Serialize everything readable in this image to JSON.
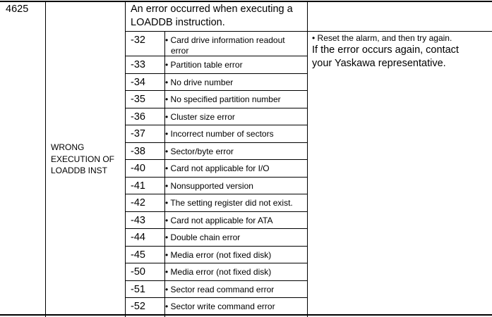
{
  "alarm": {
    "code": "4625",
    "name": "WRONG EXECUTION OF LOADDB INST",
    "name_lines": [
      "WRONG",
      "EXECUTION OF",
      "LOADDB INST"
    ],
    "description_lines": [
      "An error occurred when executing a",
      "LOADDB instruction."
    ],
    "remedy_bullet": "• Reset the alarm, and then try again.",
    "remedy_lines": [
      "If the error occurs again, contact",
      "your Yaskawa representative."
    ],
    "subcodes": [
      {
        "code": "-32",
        "lines": [
          "• Card drive information readout",
          "error"
        ]
      },
      {
        "code": "-33",
        "lines": [
          "• Partition table error"
        ]
      },
      {
        "code": "-34",
        "lines": [
          "• No drive number"
        ]
      },
      {
        "code": "-35",
        "lines": [
          "• No specified partition number"
        ]
      },
      {
        "code": "-36",
        "lines": [
          "• Cluster size error"
        ]
      },
      {
        "code": "-37",
        "lines": [
          "• Incorrect number of sectors"
        ]
      },
      {
        "code": "-38",
        "lines": [
          "• Sector/byte error"
        ]
      },
      {
        "code": "-40",
        "lines": [
          "• Card not applicable for I/O"
        ]
      },
      {
        "code": "-41",
        "lines": [
          "• Nonsupported version"
        ]
      },
      {
        "code": "-42",
        "lines": [
          "• The setting register did not exist."
        ]
      },
      {
        "code": "-43",
        "lines": [
          "• Card not applicable for ATA"
        ]
      },
      {
        "code": "-44",
        "lines": [
          "• Double chain error"
        ]
      },
      {
        "code": "-45",
        "lines": [
          "• Media error (not fixed disk)"
        ]
      },
      {
        "code": "-50",
        "lines": [
          "• Media error (not fixed disk)"
        ]
      },
      {
        "code": "-51",
        "lines": [
          "• Sector read command error"
        ]
      },
      {
        "code": "-52",
        "lines": [
          "• Sector write command error"
        ]
      }
    ]
  }
}
